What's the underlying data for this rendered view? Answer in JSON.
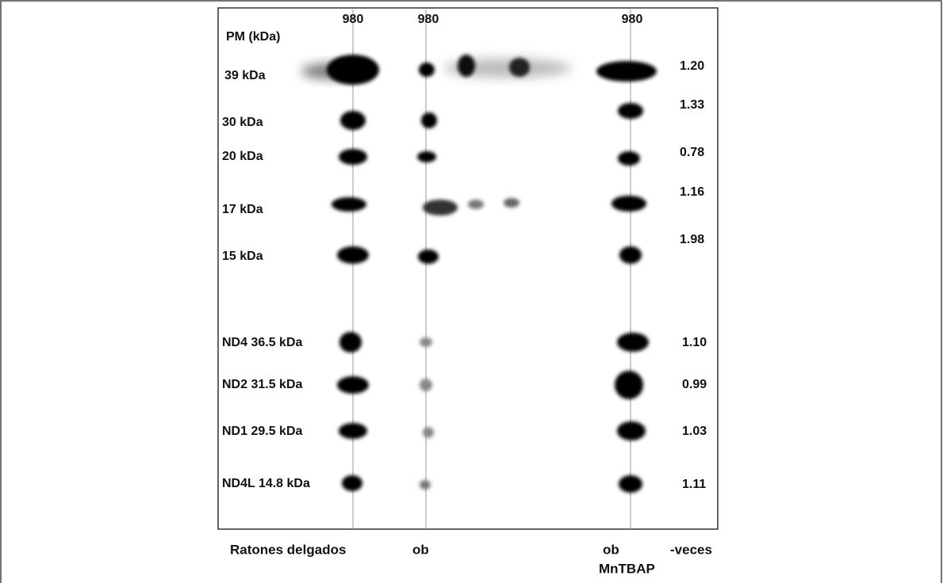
{
  "lanes": [
    {
      "header": "980"
    },
    {
      "header": "980"
    },
    {
      "header": "980"
    }
  ],
  "marker_header": "PM (kDa)",
  "rows": [
    {
      "marker": "39 kDa",
      "fold": "1.20"
    },
    {
      "marker": "30 kDa",
      "fold": "1.33"
    },
    {
      "marker": "20 kDa",
      "fold": "0.78"
    },
    {
      "marker": "17 kDa",
      "fold": "1.16"
    },
    {
      "marker": "15 kDa",
      "fold": "1.98"
    },
    {
      "marker": "ND4 36.5 kDa",
      "fold": "1.10"
    },
    {
      "marker": "ND2 31.5 kDa",
      "fold": "0.99"
    },
    {
      "marker": "ND1 29.5 kDa",
      "fold": "1.03"
    },
    {
      "marker": "ND4L 14.8 kDa",
      "fold": "1.11"
    }
  ],
  "footer": {
    "group1": "Ratones delgados",
    "group2": "ob",
    "group3": "ob",
    "group3_sub": "MnTBAP",
    "fold_label": "-veces"
  }
}
